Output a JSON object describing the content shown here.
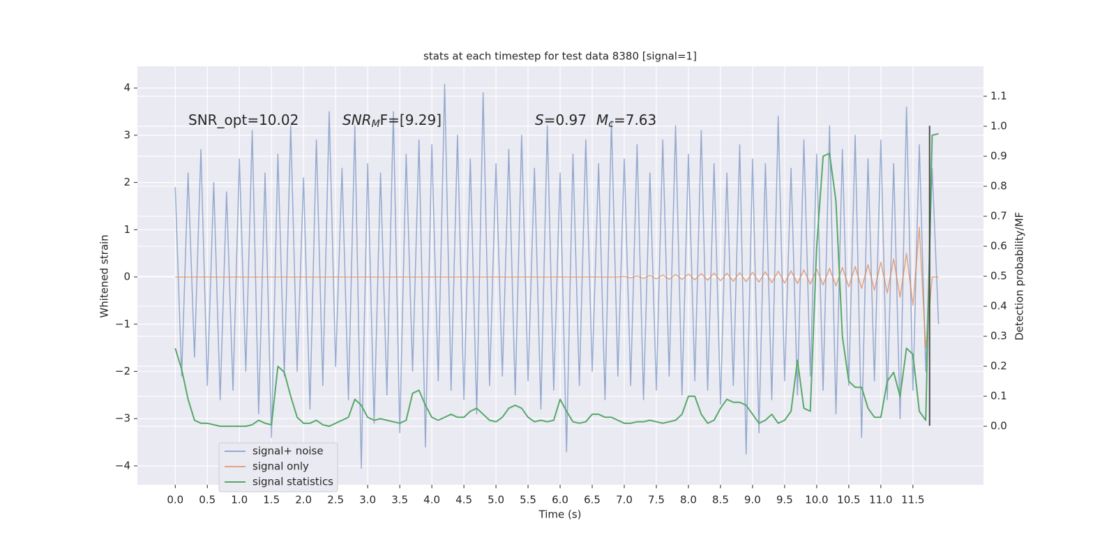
{
  "chart_data": {
    "type": "line",
    "title": "stats at each timestep for test data 8380 [signal=1]",
    "xlabel": "Time (s)",
    "ylabel": "Whitened strain",
    "y2label": "Detection probability/MF",
    "annotations": [
      [
        {
          "text": "SNR_opt=10.02"
        }
      ],
      [
        {
          "text": "SNR",
          "style": "italic"
        },
        {
          "text": "M",
          "style": "italic-sub"
        },
        {
          "text": "F=[9.29]"
        }
      ],
      [
        {
          "text": "S",
          "style": "italic"
        },
        {
          "text": "=0.97"
        },
        {
          "text": "M",
          "style": "italic"
        },
        {
          "text": "c",
          "style": "italic-sub"
        },
        {
          "text": "=7.63"
        }
      ]
    ],
    "x": [
      0.0,
      0.1,
      0.2,
      0.3,
      0.4,
      0.5,
      0.6,
      0.7,
      0.8,
      0.9,
      1.0,
      1.1,
      1.2,
      1.3,
      1.4,
      1.5,
      1.6,
      1.7,
      1.8,
      1.9,
      2.0,
      2.1,
      2.2,
      2.3,
      2.4,
      2.5,
      2.6,
      2.7,
      2.8,
      2.9,
      3.0,
      3.1,
      3.2,
      3.3,
      3.4,
      3.5,
      3.6,
      3.7,
      3.8,
      3.9,
      4.0,
      4.1,
      4.2,
      4.3,
      4.4,
      4.5,
      4.6,
      4.7,
      4.8,
      4.9,
      5.0,
      5.1,
      5.2,
      5.3,
      5.4,
      5.5,
      5.6,
      5.7,
      5.8,
      5.9,
      6.0,
      6.1,
      6.2,
      6.3,
      6.4,
      6.5,
      6.6,
      6.7,
      6.8,
      6.9,
      7.0,
      7.1,
      7.2,
      7.3,
      7.4,
      7.5,
      7.6,
      7.7,
      7.8,
      7.9,
      8.0,
      8.1,
      8.2,
      8.3,
      8.4,
      8.5,
      8.6,
      8.7,
      8.8,
      8.9,
      9.0,
      9.1,
      9.2,
      9.3,
      9.4,
      9.5,
      9.6,
      9.7,
      9.8,
      9.9,
      10.0,
      10.1,
      10.2,
      10.3,
      10.4,
      10.5,
      10.6,
      10.7,
      10.8,
      10.9,
      11.0,
      11.1,
      11.2,
      11.3,
      11.4,
      11.5,
      11.6,
      11.7,
      11.8,
      11.9
    ],
    "series": [
      {
        "name": "signal+ noise",
        "color": "#4c72b0",
        "alpha": 0.55,
        "values": [
          1.9,
          -2.1,
          2.2,
          -1.7,
          2.7,
          -2.3,
          2.0,
          -2.6,
          1.8,
          -2.4,
          2.5,
          -2.0,
          3.1,
          -2.9,
          2.2,
          -3.4,
          2.6,
          -2.1,
          3.2,
          -2.0,
          2.1,
          -2.8,
          2.9,
          -2.3,
          3.5,
          -1.9,
          2.3,
          -2.6,
          3.2,
          -4.05,
          2.4,
          -3.1,
          2.2,
          -2.5,
          3.5,
          -3.3,
          2.6,
          -2.0,
          2.9,
          -3.6,
          2.8,
          -2.2,
          4.08,
          -2.4,
          3.0,
          -2.6,
          2.5,
          -2.9,
          3.9,
          -2.3,
          2.4,
          -2.1,
          2.7,
          -2.5,
          3.0,
          -2.2,
          2.3,
          -2.8,
          3.2,
          -2.4,
          2.2,
          -3.7,
          2.6,
          -2.3,
          2.9,
          -2.0,
          2.4,
          -2.6,
          3.3,
          -2.1,
          2.5,
          -2.3,
          2.8,
          -2.6,
          2.2,
          -2.4,
          2.9,
          -2.1,
          3.2,
          -2.5,
          2.6,
          -2.2,
          3.1,
          -2.4,
          2.4,
          -2.7,
          2.2,
          -2.3,
          2.8,
          -3.75,
          2.5,
          -3.3,
          2.4,
          -2.6,
          3.4,
          -2.2,
          2.3,
          -2.5,
          2.9,
          -2.1,
          2.6,
          -2.4,
          3.2,
          -2.9,
          2.7,
          -2.3,
          3.0,
          -3.4,
          2.5,
          -2.2,
          2.9,
          -2.6,
          2.4,
          -3.0,
          3.6,
          -2.4,
          2.8,
          -2.0,
          2.3,
          -1.0
        ]
      },
      {
        "name": "signal only",
        "color": "#dd8452",
        "alpha": 0.7,
        "values": [
          0,
          0,
          0,
          0,
          0,
          0,
          0,
          0,
          0,
          0,
          0,
          0,
          0,
          0,
          0,
          0,
          0,
          0,
          0,
          0,
          0,
          0,
          0,
          0,
          0,
          0,
          0,
          0,
          0,
          0,
          0,
          0,
          0,
          0,
          0,
          0,
          0,
          0,
          0,
          0,
          0,
          0,
          0,
          0,
          0,
          0,
          0,
          0,
          0,
          0,
          0,
          0,
          0,
          0,
          0,
          0,
          0,
          0,
          0,
          0,
          0,
          0,
          0,
          0,
          0,
          0,
          0,
          0,
          0,
          0,
          0.01,
          -0.02,
          0.02,
          -0.03,
          0.03,
          -0.04,
          0.04,
          -0.05,
          0.05,
          -0.05,
          0.06,
          -0.06,
          0.07,
          -0.07,
          0.08,
          -0.08,
          0.08,
          -0.09,
          0.09,
          -0.1,
          0.1,
          -0.11,
          0.11,
          -0.12,
          0.12,
          -0.13,
          0.13,
          -0.14,
          0.15,
          -0.15,
          0.16,
          -0.17,
          0.18,
          -0.19,
          0.2,
          -0.21,
          0.22,
          -0.24,
          0.26,
          -0.28,
          0.31,
          -0.34,
          0.38,
          -0.43,
          0.5,
          -0.6,
          1.05,
          -1.5,
          0,
          0
        ]
      },
      {
        "name": "signal statistics",
        "color": "#55a868",
        "alpha": 1,
        "axis": "y2",
        "values": [
          0.26,
          0.19,
          0.09,
          0.02,
          0.01,
          0.01,
          0.005,
          0,
          0,
          0,
          0,
          0,
          0.005,
          0.02,
          0.01,
          0.005,
          0.2,
          0.18,
          0.1,
          0.03,
          0.01,
          0.01,
          0.02,
          0.005,
          0,
          0.01,
          0.02,
          0.03,
          0.09,
          0.07,
          0.03,
          0.02,
          0.025,
          0.02,
          0.015,
          0.01,
          0.02,
          0.11,
          0.12,
          0.07,
          0.03,
          0.02,
          0.03,
          0.04,
          0.03,
          0.03,
          0.05,
          0.06,
          0.04,
          0.02,
          0.015,
          0.03,
          0.06,
          0.07,
          0.06,
          0.03,
          0.015,
          0.02,
          0.015,
          0.02,
          0.09,
          0.05,
          0.015,
          0.01,
          0.015,
          0.04,
          0.04,
          0.03,
          0.03,
          0.02,
          0.01,
          0.01,
          0.015,
          0.015,
          0.02,
          0.015,
          0.01,
          0.015,
          0.02,
          0.04,
          0.1,
          0.1,
          0.04,
          0.01,
          0.02,
          0.06,
          0.09,
          0.08,
          0.08,
          0.07,
          0.04,
          0.01,
          0.02,
          0.04,
          0.01,
          0.02,
          0.05,
          0.22,
          0.06,
          0.05,
          0.6,
          0.9,
          0.91,
          0.75,
          0.3,
          0.15,
          0.13,
          0.13,
          0.06,
          0.03,
          0.03,
          0.15,
          0.18,
          0.1,
          0.26,
          0.24,
          0.05,
          0.02,
          0.97,
          0.975
        ]
      }
    ],
    "vline": {
      "x": 11.76,
      "ymin": -3.15,
      "ymax": 3.2,
      "color": "#333333"
    },
    "xlim": [
      -0.59,
      12.6
    ],
    "ylim": [
      -4.4,
      4.46
    ],
    "y2lim": [
      -0.195,
      1.2
    ],
    "xticks": [
      {
        "value": 0,
        "label": "0.0"
      },
      {
        "value": 0.5,
        "label": "0.5"
      },
      {
        "value": 1,
        "label": "1.0"
      },
      {
        "value": 1.5,
        "label": "1.5"
      },
      {
        "value": 2,
        "label": "2.0"
      },
      {
        "value": 2.5,
        "label": "2.5"
      },
      {
        "value": 3,
        "label": "3.0"
      },
      {
        "value": 3.5,
        "label": "3.5"
      },
      {
        "value": 4,
        "label": "4.0"
      },
      {
        "value": 4.5,
        "label": "4.5"
      },
      {
        "value": 5,
        "label": "5.0"
      },
      {
        "value": 5.5,
        "label": "5.5"
      },
      {
        "value": 6,
        "label": "6.0"
      },
      {
        "value": 6.5,
        "label": "6.5"
      },
      {
        "value": 7,
        "label": "7.0"
      },
      {
        "value": 7.5,
        "label": "7.5"
      },
      {
        "value": 8,
        "label": "8.0"
      },
      {
        "value": 8.5,
        "label": "8.5"
      },
      {
        "value": 9,
        "label": "9.0"
      },
      {
        "value": 9.5,
        "label": "9.5"
      },
      {
        "value": 10,
        "label": "10.0"
      },
      {
        "value": 10.5,
        "label": "10.5"
      },
      {
        "value": 11,
        "label": "11.0"
      },
      {
        "value": 11.5,
        "label": "11.5"
      }
    ],
    "yticks": [
      {
        "value": -4,
        "label": "−4"
      },
      {
        "value": -3,
        "label": "−3"
      },
      {
        "value": -2,
        "label": "−2"
      },
      {
        "value": -1,
        "label": "−1"
      },
      0,
      1,
      2,
      3,
      4
    ],
    "y2ticks": [
      {
        "value": 0,
        "label": "0.0"
      },
      {
        "value": 0.1,
        "label": "0.1"
      },
      {
        "value": 0.2,
        "label": "0.2"
      },
      {
        "value": 0.3,
        "label": "0.3"
      },
      {
        "value": 0.4,
        "label": "0.4"
      },
      {
        "value": 0.5,
        "label": "0.5"
      },
      {
        "value": 0.6,
        "label": "0.6"
      },
      {
        "value": 0.7,
        "label": "0.7"
      },
      {
        "value": 0.8,
        "label": "0.8"
      },
      {
        "value": 0.9,
        "label": "0.9"
      },
      {
        "value": 1,
        "label": "1.0"
      },
      {
        "value": 1.1,
        "label": "1.1"
      }
    ],
    "grid": true,
    "legend": "lower left",
    "background": "#eaeaf2"
  }
}
